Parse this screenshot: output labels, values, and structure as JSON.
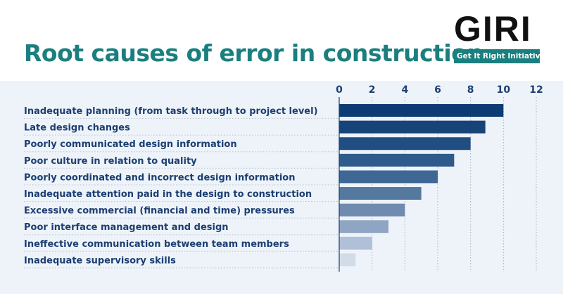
{
  "header": {
    "title": "Root causes of error in construction",
    "logo_text": "GIRI",
    "logo_tagline": "Get It Right Initiative"
  },
  "colors": {
    "accent": "#1a7f7e",
    "label": "#1d3f73",
    "panel": "#edf3f8"
  },
  "chart_data": {
    "type": "bar",
    "orientation": "horizontal",
    "title": "Root causes of error in construction",
    "xlabel": "",
    "ylabel": "",
    "xlim": [
      0,
      12
    ],
    "ticks": [
      "0",
      "2",
      "4",
      "6",
      "8",
      "10",
      "12"
    ],
    "tick_values": [
      0,
      2,
      4,
      6,
      8,
      10,
      12
    ],
    "grid": true,
    "categories": [
      "Inadequate planning (from task through to project level)",
      "Late design changes",
      "Poorly communicated design information",
      "Poor culture in relation to quality",
      "Poorly coordinated and incorrect design information",
      "Inadequate attention paid in the design to construction",
      "Excessive commercial (financial and time) pressures",
      "Poor interface management and design",
      "Ineffective communication between team members",
      "Inadequate supervisory skills"
    ],
    "values": [
      10.0,
      8.9,
      8.0,
      7.0,
      6.0,
      5.0,
      4.0,
      3.0,
      2.0,
      1.0
    ],
    "bar_colors": [
      "#0d3b73",
      "#164479",
      "#214e82",
      "#2f5a8c",
      "#3f6796",
      "#55789f",
      "#6f8baf",
      "#8fa5c4",
      "#b0c0d8",
      "#d2dbe8"
    ]
  }
}
